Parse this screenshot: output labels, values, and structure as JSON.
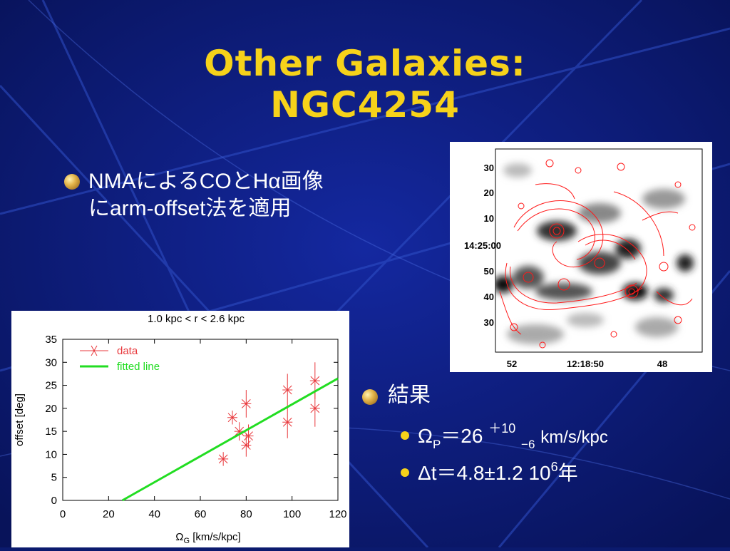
{
  "slide": {
    "title_line1": "Other Galaxies:",
    "title_line2": "NGC4254",
    "bullet1_line1": "NMAによるCOとHα画像",
    "bullet1_line2": "にarm-offset法を適用",
    "bullet2": "結果",
    "result1": {
      "omega": "Ω",
      "sub_p": "P",
      "eq": "＝26",
      "plus": "＋10",
      "minus": "−6",
      "units": "km/s/kpc"
    },
    "result2": {
      "main": "Δt＝4.8±1.2  10",
      "exp": "6",
      "tail": "年"
    }
  },
  "image_axes": {
    "dec_ticks": [
      "30",
      "20",
      "10",
      "14:25:00",
      "50",
      "40",
      "30"
    ],
    "ra_ticks": [
      "52",
      "12:18:50",
      "48"
    ]
  },
  "chart_data": {
    "type": "scatter",
    "title": "1.0 kpc < r < 2.6 kpc",
    "xlabel_symbol": "Ω",
    "xlabel_sub": "G",
    "xlabel_rest": " [km/s/kpc]",
    "ylabel": "offset [deg]",
    "xlim": [
      0,
      120
    ],
    "ylim": [
      0,
      35
    ],
    "xticks": [
      0,
      20,
      40,
      60,
      80,
      100,
      120
    ],
    "yticks": [
      0,
      5,
      10,
      15,
      20,
      25,
      30,
      35
    ],
    "series": [
      {
        "name": "data",
        "color": "#e8383c",
        "points": [
          {
            "x": 70,
            "y": 9,
            "yerr": 1.5
          },
          {
            "x": 74,
            "y": 18,
            "yerr": 1.5
          },
          {
            "x": 77,
            "y": 15,
            "yerr": 2
          },
          {
            "x": 80,
            "y": 21,
            "yerr": 3
          },
          {
            "x": 80,
            "y": 12,
            "yerr": 2.5
          },
          {
            "x": 81,
            "y": 14,
            "yerr": 2.5
          },
          {
            "x": 98,
            "y": 24,
            "yerr": 3.5
          },
          {
            "x": 98,
            "y": 17,
            "yerr": 3.5
          },
          {
            "x": 110,
            "y": 26,
            "yerr": 4
          },
          {
            "x": 110,
            "y": 20,
            "yerr": 4
          }
        ]
      },
      {
        "name": "fitted line",
        "color": "#22dd22",
        "line": [
          {
            "x": 26,
            "y": 0
          },
          {
            "x": 120,
            "y": 26.5
          }
        ]
      }
    ],
    "legend_position": "top-left"
  }
}
